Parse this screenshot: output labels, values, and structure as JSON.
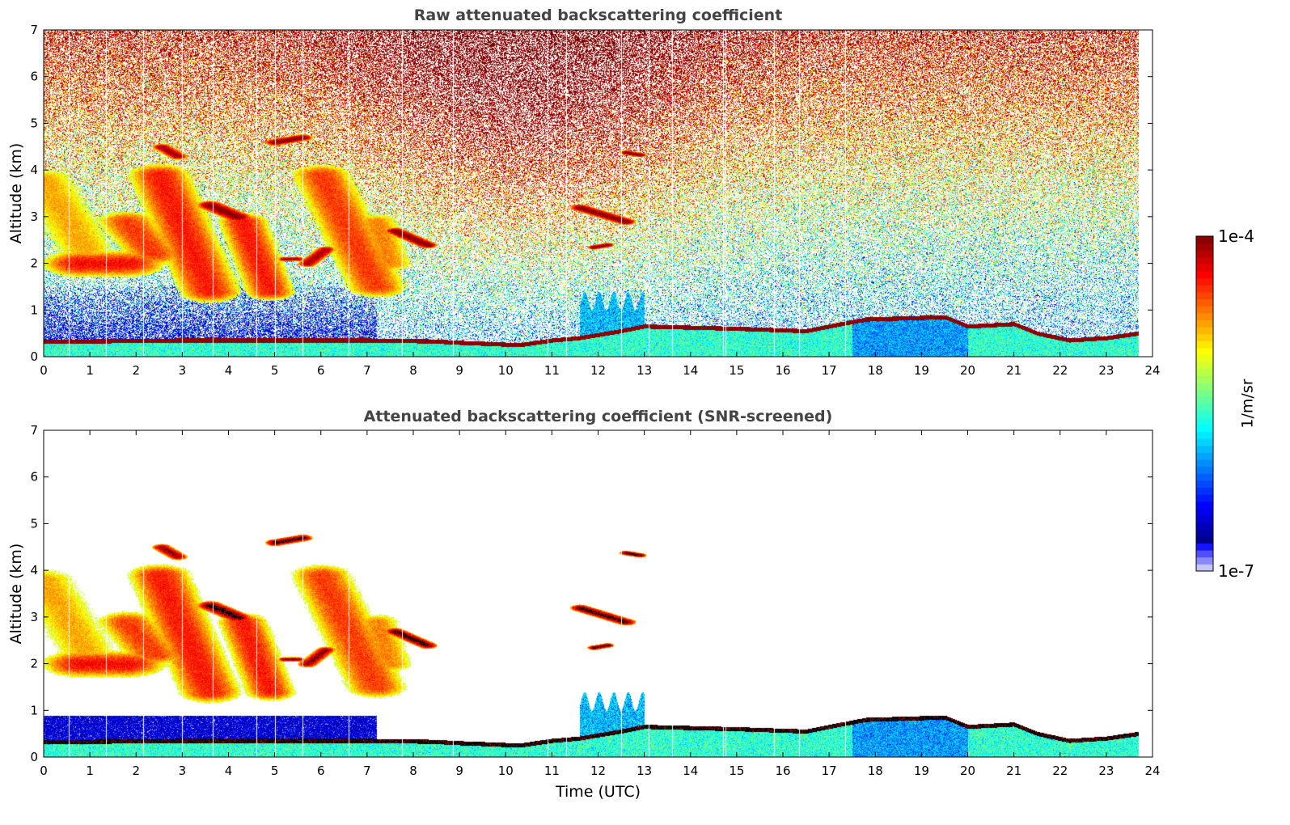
{
  "chart_data": [
    {
      "type": "heatmap",
      "title": "Raw attenuated backscattering coefficient",
      "xlabel": "",
      "ylabel": "Altitude (km)",
      "xlim": [
        0,
        24
      ],
      "ylim": [
        0,
        7
      ],
      "xticks": [
        0,
        1,
        2,
        3,
        4,
        5,
        6,
        7,
        8,
        9,
        10,
        11,
        12,
        13,
        14,
        15,
        16,
        17,
        18,
        19,
        20,
        21,
        22,
        23,
        24
      ],
      "yticks": [
        0,
        1,
        2,
        3,
        4,
        5,
        6,
        7
      ],
      "snr_screened": false
    },
    {
      "type": "heatmap",
      "title": "Attenuated backscattering coefficient (SNR-screened)",
      "xlabel": "Time (UTC)",
      "ylabel": "Altitude (km)",
      "xlim": [
        0,
        24
      ],
      "ylim": [
        0,
        7
      ],
      "xticks": [
        0,
        1,
        2,
        3,
        4,
        5,
        6,
        7,
        8,
        9,
        10,
        11,
        12,
        13,
        14,
        15,
        16,
        17,
        18,
        19,
        20,
        21,
        22,
        23,
        24
      ],
      "yticks": [
        0,
        1,
        2,
        3,
        4,
        5,
        6,
        7
      ],
      "snr_screened": true
    }
  ],
  "colorbar": {
    "label": "1/m/sr",
    "min_label": "1e-7",
    "max_label": "1e-4",
    "range_log10": [
      -7,
      -4
    ],
    "levels": 48,
    "scale": "log"
  },
  "scene": {
    "data_end_utc": 23.7,
    "data_gaps_utc": [
      0.55,
      1.35,
      2.15,
      3.0,
      3.65,
      4.6,
      5.0,
      5.6,
      6.6,
      7.75,
      8.85,
      10.9,
      11.3,
      12.5,
      13.1,
      13.6,
      14.7,
      14.75,
      15.8,
      16.35,
      17.35
    ],
    "boundary_layer_top_km": [
      [
        0,
        0.32
      ],
      [
        3,
        0.35
      ],
      [
        7,
        0.35
      ],
      [
        8.4,
        0.33
      ],
      [
        9,
        0.3
      ],
      [
        10.3,
        0.25
      ],
      [
        11,
        0.35
      ],
      [
        11.6,
        0.4
      ],
      [
        12.5,
        0.55
      ],
      [
        13,
        0.65
      ],
      [
        15,
        0.6
      ],
      [
        16.5,
        0.55
      ],
      [
        17,
        0.65
      ],
      [
        17.8,
        0.8
      ],
      [
        19.5,
        0.85
      ],
      [
        20,
        0.65
      ],
      [
        21,
        0.7
      ],
      [
        21.5,
        0.5
      ],
      [
        22.2,
        0.35
      ],
      [
        23,
        0.4
      ],
      [
        23.7,
        0.5
      ]
    ],
    "cloud_streaks": [
      {
        "t0": 0.0,
        "z0": 3.8,
        "t1": 0.9,
        "z1": 2.3,
        "thick_km": 0.6,
        "log10": -4.8
      },
      {
        "t0": 0.8,
        "z0": 2.0,
        "t1": 1.8,
        "z1": 2.0,
        "thick_km": 0.6,
        "log10": -4.35
      },
      {
        "t0": 1.8,
        "z0": 2.9,
        "t1": 2.4,
        "z1": 2.2,
        "thick_km": 0.5,
        "log10": -4.5
      },
      {
        "t0": 2.5,
        "z0": 3.9,
        "t1": 3.6,
        "z1": 1.4,
        "thick_km": 0.5,
        "log10": -4.4
      },
      {
        "t0": 2.55,
        "z0": 4.5,
        "t1": 2.9,
        "z1": 4.3,
        "thick_km": 0.15,
        "log10": -4.1
      },
      {
        "t0": 3.6,
        "z0": 3.25,
        "t1": 4.2,
        "z1": 3.0,
        "thick_km": 0.2,
        "log10": -4.0
      },
      {
        "t0": 4.3,
        "z0": 2.9,
        "t1": 4.9,
        "z1": 1.4,
        "thick_km": 0.4,
        "log10": -4.4
      },
      {
        "t0": 5.0,
        "z0": 4.6,
        "t1": 5.6,
        "z1": 4.7,
        "thick_km": 0.15,
        "log10": -4.0
      },
      {
        "t0": 5.2,
        "z0": 2.1,
        "t1": 5.5,
        "z1": 2.1,
        "thick_km": 0.1,
        "log10": -4.1
      },
      {
        "t0": 5.7,
        "z0": 2.0,
        "t1": 6.1,
        "z1": 2.3,
        "thick_km": 0.15,
        "log10": -4.1
      },
      {
        "t0": 6.0,
        "z0": 3.9,
        "t1": 7.2,
        "z1": 1.5,
        "thick_km": 0.5,
        "log10": -4.5
      },
      {
        "t0": 7.2,
        "z0": 2.9,
        "t1": 7.5,
        "z1": 2.0,
        "thick_km": 0.4,
        "log10": -4.7
      },
      {
        "t0": 7.6,
        "z0": 2.7,
        "t1": 8.3,
        "z1": 2.4,
        "thick_km": 0.15,
        "log10": -4.0
      },
      {
        "t0": 11.6,
        "z0": 3.2,
        "t1": 12.6,
        "z1": 2.9,
        "thick_km": 0.15,
        "log10": -4.0
      },
      {
        "t0": 12.6,
        "z0": 4.38,
        "t1": 12.9,
        "z1": 4.33,
        "thick_km": 0.1,
        "log10": -4.0
      },
      {
        "t0": 11.9,
        "z0": 2.35,
        "t1": 12.2,
        "z1": 2.4,
        "thick_km": 0.1,
        "log10": -4.0
      }
    ]
  }
}
